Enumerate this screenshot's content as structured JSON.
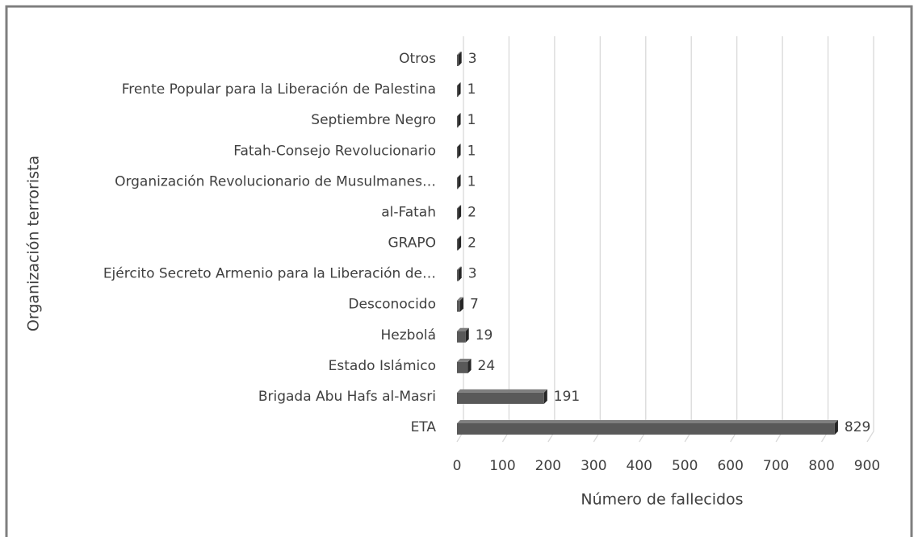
{
  "chart_data": {
    "type": "bar",
    "orientation": "horizontal",
    "three_d": true,
    "x_label": "Número de fallecidos",
    "y_label": "Organización terrorista",
    "categories": [
      "Otros",
      "Frente Popular para la Liberación de Palestina",
      "Septiembre Negro",
      "Fatah-Consejo Revolucionario",
      "Organización Revolucionario de Musulmanes…",
      "al-Fatah",
      "GRAPO",
      "Ejército Secreto Armenio para la Liberación de…",
      "Desconocido",
      "Hezbolá",
      "Estado Islámico",
      "Brigada Abu Hafs al-Masri",
      "ETA"
    ],
    "values": [
      3,
      1,
      1,
      1,
      1,
      2,
      2,
      3,
      7,
      19,
      24,
      191,
      829
    ],
    "color": "#595959",
    "xlim": [
      0,
      900
    ],
    "xticks": [
      0,
      100,
      200,
      300,
      400,
      500,
      600,
      700,
      800,
      900
    ],
    "grid": true
  }
}
